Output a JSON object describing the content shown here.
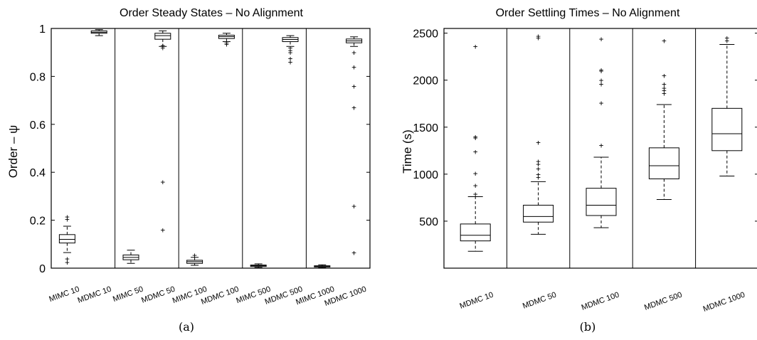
{
  "chart_data": [
    {
      "type": "box",
      "title": "Order Steady States – No Alignment",
      "ylabel": "Order – ψ",
      "xlabel": "",
      "ylim": [
        0,
        1.0
      ],
      "yticks": [
        0,
        0.2,
        0.4,
        0.6,
        0.8,
        1
      ],
      "ytick_labels": [
        "0",
        "0.2",
        "0.4",
        "0.6",
        "0.8",
        "1"
      ],
      "caption": "(a)",
      "categories": [
        "MIMC 10",
        "MDMC 10",
        "MIMC 50",
        "MDMC 50",
        "MIMC 100",
        "MDMC 100",
        "MIMC 500",
        "MDMC 500",
        "MIMC 1000",
        "MDMC 1000"
      ],
      "boxes": [
        {
          "whislo": 0.065,
          "q1": 0.105,
          "med": 0.12,
          "q3": 0.14,
          "whishi": 0.175,
          "fliers": [
            0.215,
            0.205,
            0.04,
            0.025
          ]
        },
        {
          "whislo": 0.97,
          "q1": 0.98,
          "med": 0.984,
          "q3": 0.99,
          "whishi": 0.995,
          "fliers": []
        },
        {
          "whislo": 0.02,
          "q1": 0.035,
          "med": 0.045,
          "q3": 0.055,
          "whishi": 0.075,
          "fliers": []
        },
        {
          "whislo": 0.925,
          "q1": 0.955,
          "med": 0.97,
          "q3": 0.98,
          "whishi": 0.99,
          "fliers": [
            0.93,
            0.92,
            0.36,
            0.16
          ]
        },
        {
          "whislo": 0.012,
          "q1": 0.02,
          "med": 0.027,
          "q3": 0.033,
          "whishi": 0.045,
          "fliers": [
            0.055
          ]
        },
        {
          "whislo": 0.945,
          "q1": 0.958,
          "med": 0.966,
          "q3": 0.972,
          "whishi": 0.98,
          "fliers": [
            0.94,
            0.935
          ]
        },
        {
          "whislo": 0.003,
          "q1": 0.007,
          "med": 0.01,
          "q3": 0.013,
          "whishi": 0.018,
          "fliers": []
        },
        {
          "whislo": 0.925,
          "q1": 0.945,
          "med": 0.954,
          "q3": 0.962,
          "whishi": 0.97,
          "fliers": [
            0.92,
            0.91,
            0.9,
            0.875,
            0.86
          ]
        },
        {
          "whislo": 0.002,
          "q1": 0.005,
          "med": 0.007,
          "q3": 0.01,
          "whishi": 0.014,
          "fliers": []
        },
        {
          "whislo": 0.925,
          "q1": 0.94,
          "med": 0.948,
          "q3": 0.956,
          "whishi": 0.965,
          "fliers": [
            0.9,
            0.84,
            0.76,
            0.67,
            0.26,
            0.065
          ]
        }
      ]
    },
    {
      "type": "box",
      "title": "Order Settling Times – No Alignment",
      "ylabel": "Time (s)",
      "xlabel": "",
      "ylim": [
        0,
        2550
      ],
      "yticks": [
        500,
        1000,
        1500,
        2000,
        2500
      ],
      "ytick_labels": [
        "500",
        "1000",
        "1500",
        "2000",
        "2500"
      ],
      "caption": "(b)",
      "categories": [
        "MDMC 10",
        "MDMC 50",
        "MDMC 100",
        "MDMC 500",
        "MDMC 1000"
      ],
      "boxes": [
        {
          "whislo": 180,
          "q1": 290,
          "med": 350,
          "q3": 470,
          "whishi": 760,
          "fliers": [
            790,
            880,
            1010,
            1240,
            1390,
            1400,
            2360
          ]
        },
        {
          "whislo": 360,
          "q1": 490,
          "med": 550,
          "q3": 670,
          "whishi": 920,
          "fliers": [
            970,
            1000,
            1060,
            1110,
            1140,
            1340,
            2450,
            2470
          ]
        },
        {
          "whislo": 430,
          "q1": 560,
          "med": 670,
          "q3": 850,
          "whishi": 1180,
          "fliers": [
            1310,
            1760,
            1960,
            2000,
            2100,
            2110,
            2440
          ]
        },
        {
          "whislo": 730,
          "q1": 950,
          "med": 1090,
          "q3": 1280,
          "whishi": 1740,
          "fliers": [
            1860,
            1890,
            1920,
            1960,
            2050,
            2420
          ]
        },
        {
          "whislo": 980,
          "q1": 1250,
          "med": 1430,
          "q3": 1700,
          "whishi": 2380,
          "fliers": [
            2420,
            2450
          ]
        }
      ]
    }
  ]
}
